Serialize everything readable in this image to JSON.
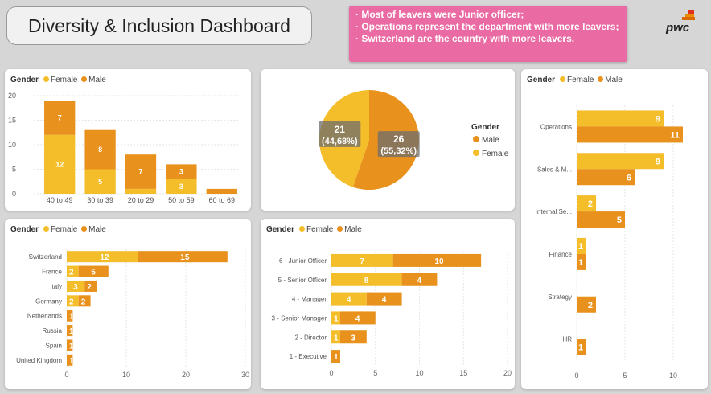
{
  "header": {
    "title": "Diversity & Inclusion Dashboard",
    "logo_text": "pwc"
  },
  "notes": [
    "Most of leavers were Junior officer;",
    "Operations represent the department with more leavers;",
    "Switzerland are the country with more leavers."
  ],
  "colors": {
    "female": "#f4bd2a",
    "male": "#e8911c",
    "note_bg": "#ea6aa3"
  },
  "legend": {
    "title": "Gender",
    "female": "Female",
    "male": "Male"
  },
  "chart_data": [
    {
      "type": "bar",
      "stacked": true,
      "categories": [
        "40 to 49",
        "30 to 39",
        "20 to 29",
        "50 to 59",
        "60 to 69"
      ],
      "series": [
        {
          "name": "Female",
          "values": [
            12,
            5,
            1,
            3,
            0
          ]
        },
        {
          "name": "Male",
          "values": [
            7,
            8,
            7,
            3,
            1
          ]
        }
      ],
      "data_labels": [
        [
          "12",
          "7"
        ],
        [
          "5",
          "8"
        ],
        [
          "",
          "7"
        ],
        [
          "3",
          "3"
        ],
        [
          "",
          ""
        ]
      ],
      "ylim": [
        0,
        20
      ],
      "yticks": [
        "0",
        "5",
        "10",
        "15",
        "20"
      ],
      "grid": true
    },
    {
      "type": "pie",
      "slices": [
        {
          "name": "Female",
          "value": 21,
          "label": "21",
          "pct": "(44,68%)"
        },
        {
          "name": "Male",
          "value": 26,
          "label": "26",
          "pct": "(55,32%)"
        }
      ],
      "legend_title": "Gender",
      "legend_items": [
        "Male",
        "Female"
      ],
      "legend_position": "right"
    },
    {
      "type": "bar",
      "orientation": "horizontal",
      "stacked": true,
      "categories": [
        "Switzerland",
        "France",
        "Italy",
        "Germany",
        "Netherlands",
        "Russia",
        "Spain",
        "United Kingdom"
      ],
      "series": [
        {
          "name": "Female",
          "values": [
            12,
            2,
            3,
            2,
            0,
            0,
            0,
            0
          ]
        },
        {
          "name": "Male",
          "values": [
            15,
            5,
            2,
            2,
            1,
            1,
            1,
            1
          ]
        }
      ],
      "xlim": [
        0,
        30
      ],
      "xticks": [
        "0",
        "10",
        "20",
        "30"
      ]
    },
    {
      "type": "bar",
      "orientation": "horizontal",
      "stacked": true,
      "categories": [
        "6 - Junior Officer",
        "5 - Senior Officer",
        "4 - Manager",
        "3 - Senior Manager",
        "2 - Director",
        "1 - Executive"
      ],
      "series": [
        {
          "name": "Female",
          "values": [
            7,
            8,
            4,
            1,
            1,
            0
          ]
        },
        {
          "name": "Male",
          "values": [
            10,
            4,
            4,
            4,
            3,
            1
          ]
        }
      ],
      "xlim": [
        0,
        20
      ],
      "xticks": [
        "0",
        "5",
        "10",
        "15",
        "20"
      ]
    },
    {
      "type": "bar",
      "orientation": "horizontal",
      "grouped": true,
      "categories": [
        "Operations",
        "Sales & M...",
        "Internal Se...",
        "Finance",
        "Strategy",
        "HR"
      ],
      "series": [
        {
          "name": "Female",
          "values": [
            9,
            9,
            2,
            1,
            0,
            0
          ]
        },
        {
          "name": "Male",
          "values": [
            11,
            6,
            5,
            1,
            2,
            1
          ]
        }
      ],
      "xlim": [
        0,
        12
      ],
      "xticks": [
        "0",
        "5",
        "10"
      ]
    }
  ]
}
